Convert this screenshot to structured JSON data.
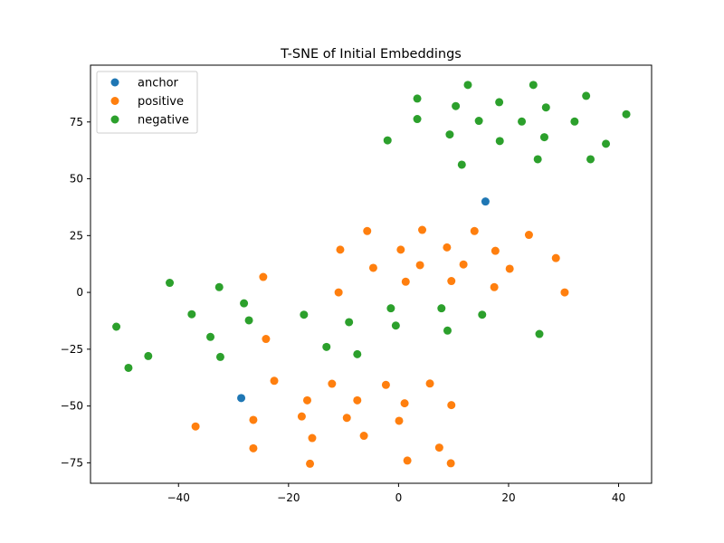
{
  "chart_data": {
    "type": "scatter",
    "title": "T-SNE of Initial Embeddings",
    "xlabel": "",
    "ylabel": "",
    "xlim": [
      -56,
      46
    ],
    "ylim": [
      -84,
      100
    ],
    "xticks": [
      -40,
      -20,
      0,
      20,
      40
    ],
    "yticks": [
      -75,
      -50,
      -25,
      0,
      25,
      50,
      75
    ],
    "xtick_labels": [
      "−40",
      "−20",
      "0",
      "20",
      "40"
    ],
    "ytick_labels": [
      "−75",
      "−50",
      "−25",
      "0",
      "25",
      "50",
      "75"
    ],
    "grid": false,
    "legend_position": "top-left",
    "series": [
      {
        "name": "anchor",
        "color": "#1f77b4",
        "points": [
          [
            15.8,
            40
          ],
          [
            -28.6,
            -46.5
          ]
        ]
      },
      {
        "name": "positive",
        "color": "#ff7f0e",
        "points": [
          [
            -10.6,
            18.8
          ],
          [
            -5.7,
            27
          ],
          [
            0.4,
            18.8
          ],
          [
            4.3,
            27.5
          ],
          [
            13.8,
            27
          ],
          [
            23.7,
            25.3
          ],
          [
            8.8,
            19.8
          ],
          [
            17.6,
            18.3
          ],
          [
            28.6,
            15.1
          ],
          [
            -4.6,
            10.8
          ],
          [
            3.9,
            12
          ],
          [
            11.8,
            12.3
          ],
          [
            20.2,
            10.4
          ],
          [
            -24.6,
            6.8
          ],
          [
            1.3,
            4.7
          ],
          [
            9.6,
            5
          ],
          [
            -10.9,
            0
          ],
          [
            17.4,
            2.3
          ],
          [
            30.2,
            0
          ],
          [
            -24.1,
            -20.5
          ],
          [
            -22.6,
            -38.9
          ],
          [
            -16.6,
            -47.5
          ],
          [
            -12.1,
            -40.2
          ],
          [
            -7.5,
            -47.5
          ],
          [
            -2.3,
            -40.7
          ],
          [
            1.1,
            -48.8
          ],
          [
            5.7,
            -40.1
          ],
          [
            9.6,
            -49.6
          ],
          [
            -36.9,
            -59
          ],
          [
            -26.4,
            -56.1
          ],
          [
            -17.6,
            -54.6
          ],
          [
            -9.4,
            -55.2
          ],
          [
            0.1,
            -56.5
          ],
          [
            -26.4,
            -68.6
          ],
          [
            -15.7,
            -64.1
          ],
          [
            -6.3,
            -63.1
          ],
          [
            7.4,
            -68.3
          ],
          [
            -16.1,
            -75.4
          ],
          [
            1.6,
            -74
          ],
          [
            9.5,
            -75.2
          ]
        ]
      },
      {
        "name": "negative",
        "color": "#2ca02c",
        "points": [
          [
            3.4,
            85.3
          ],
          [
            12.6,
            91.3
          ],
          [
            24.5,
            91.3
          ],
          [
            10.4,
            82
          ],
          [
            18.3,
            83.7
          ],
          [
            26.8,
            81.4
          ],
          [
            34.1,
            86.5
          ],
          [
            41.4,
            78.4
          ],
          [
            3.4,
            76.3
          ],
          [
            14.6,
            75.5
          ],
          [
            22.4,
            75.2
          ],
          [
            32,
            75.2
          ],
          [
            9.3,
            69.5
          ],
          [
            18.4,
            66.6
          ],
          [
            26.5,
            68.3
          ],
          [
            37.7,
            65.4
          ],
          [
            -2,
            66.9
          ],
          [
            11.5,
            56.2
          ],
          [
            25.3,
            58.6
          ],
          [
            34.9,
            58.6
          ],
          [
            -41.6,
            4.2
          ],
          [
            -32.6,
            2.3
          ],
          [
            -28.1,
            -4.8
          ],
          [
            -37.6,
            -9.6
          ],
          [
            -27.2,
            -12.3
          ],
          [
            -17.2,
            -9.8
          ],
          [
            -1.4,
            -7
          ],
          [
            7.8,
            -7
          ],
          [
            15.2,
            -9.8
          ],
          [
            -9,
            -13.1
          ],
          [
            -0.5,
            -14.6
          ],
          [
            8.9,
            -16.8
          ],
          [
            25.6,
            -18.3
          ],
          [
            -51.3,
            -15.1
          ],
          [
            -34.2,
            -19.6
          ],
          [
            -13.1,
            -24
          ],
          [
            -7.5,
            -27.2
          ],
          [
            -45.5,
            -28
          ],
          [
            -32.4,
            -28.4
          ],
          [
            -49.1,
            -33.2
          ]
        ]
      }
    ]
  }
}
